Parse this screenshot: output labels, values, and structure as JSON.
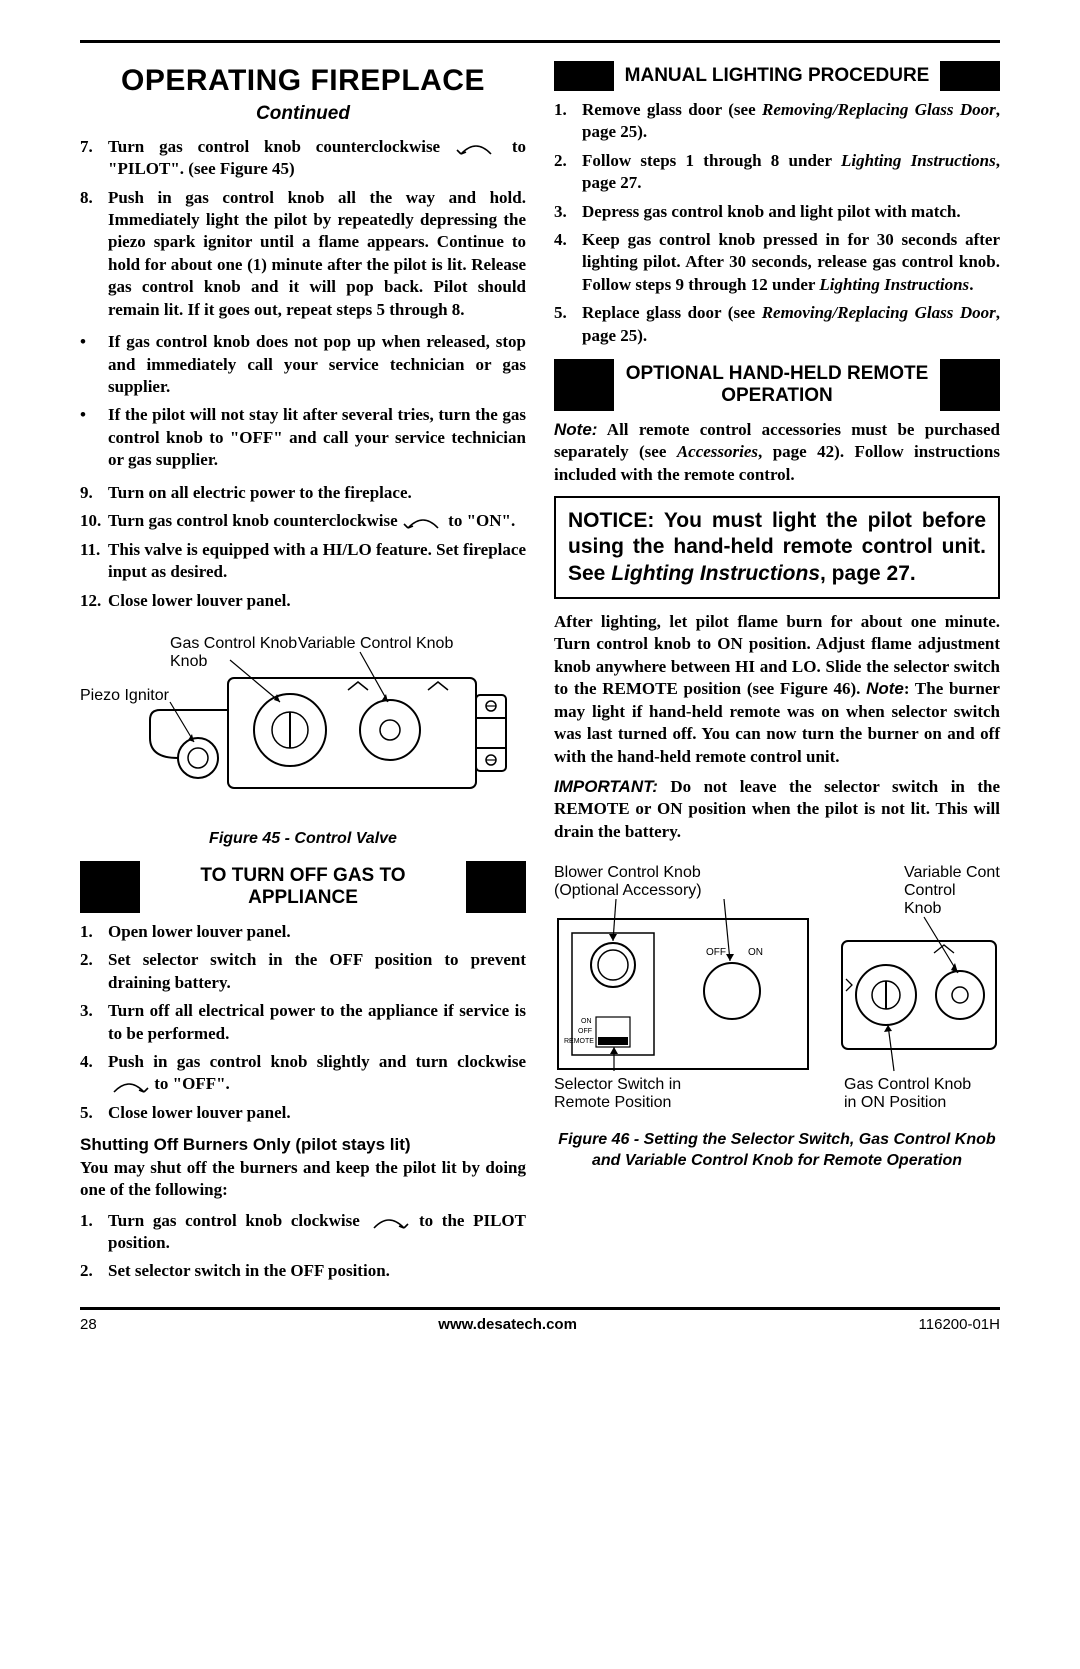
{
  "header": {
    "title": "OPERATING FIREPLACE",
    "continued": "Continued"
  },
  "left": {
    "steps_a": [
      {
        "n": "7.",
        "pre": "Turn gas control knob counterclockwise",
        "post": " to \"PILOT\". (see Figure 45)"
      },
      {
        "n": "8.",
        "pre": "",
        "post": "Push in gas control knob all the way and hold. Immediately light the pilot by repeatedly depressing the piezo spark ignitor until a flame appears. Continue to hold for about one (1) minute after the pilot is lit. Release gas control knob and it will pop back. Pilot should remain lit. If it goes out, repeat steps 5 through 8."
      }
    ],
    "bullets": [
      "If gas control knob does not pop up when released, stop and immediately call your service technician or gas supplier.",
      "If the pilot will not stay lit after several tries, turn the gas control knob to \"OFF\" and call your service technician or gas supplier."
    ],
    "steps_b": [
      {
        "n": "9.",
        "pre": "",
        "post": "Turn on all electric power to the fireplace."
      },
      {
        "n": "10.",
        "pre": "Turn gas control knob counterclockwise",
        "post": " to \"ON\"."
      },
      {
        "n": "11.",
        "pre": "",
        "post": "This valve is equipped with a HI/LO feature. Set fireplace input as desired."
      },
      {
        "n": "12.",
        "pre": "",
        "post": "Close lower louver panel."
      }
    ],
    "fig45": {
      "label_gas": "Gas Control Knob",
      "label_var": "Variable Control Knob",
      "label_piezo": "Piezo Ignitor",
      "caption": "Figure 45 - Control Valve"
    },
    "turnoff": {
      "header": "TO TURN OFF GAS TO APPLIANCE",
      "steps": [
        {
          "n": "1.",
          "pre": "",
          "post": "Open lower louver panel."
        },
        {
          "n": "2.",
          "pre": "",
          "post": "Set selector switch in the OFF position to prevent draining battery."
        },
        {
          "n": "3.",
          "pre": "",
          "post": "Turn off all electrical power to the appliance if service is to be performed."
        },
        {
          "n": "4.",
          "pre": "Push in gas control knob slightly and turn clockwise ",
          "post": " to \"OFF\"."
        },
        {
          "n": "5.",
          "pre": "",
          "post": "Close lower louver panel."
        }
      ]
    },
    "shutoff": {
      "subhead": "Shutting Off Burners Only (pilot stays lit)",
      "intro": "You may shut off the burners and keep the pilot lit by doing one of the following:",
      "steps": [
        {
          "n": "1.",
          "pre": "Turn gas control knob clockwise ",
          "post": " to the PILOT position."
        },
        {
          "n": "2.",
          "pre": "",
          "post": "Set selector switch in the OFF position."
        }
      ]
    }
  },
  "right": {
    "manual": {
      "header": "MANUAL LIGHTING PROCEDURE",
      "steps": [
        {
          "n": "1.",
          "html": "Remove glass door (see <span class='italic'>Removing/Replacing Glass Door</span>, page 25)."
        },
        {
          "n": "2.",
          "html": "Follow steps 1 through 8 under <span class='italic'>Lighting Instructions</span>, page 27."
        },
        {
          "n": "3.",
          "html": "Depress gas control knob and light pilot with match."
        },
        {
          "n": "4.",
          "html": "Keep gas control knob pressed in for 30 seconds after lighting pilot. After 30 seconds, release gas control knob. Follow steps 9 through 12 under <span class='italic'>Lighting Instructions</span>."
        },
        {
          "n": "5.",
          "html": "Replace glass door (see <span class='italic'>Removing/Replacing Glass Door</span>, page 25)."
        }
      ]
    },
    "optional": {
      "header": "OPTIONAL HAND-HELD REMOTE OPERATION",
      "note_label": "Note:",
      "note_body": " All remote control accessories must be purchased separately (see <span class='italic'>Accessories</span>, page 42). Follow instructions included with the remote control."
    },
    "notice": {
      "pre": "NOTICE: You must light the pilot before using the hand-held remote control unit. See ",
      "it": "Lighting Instructions",
      "post": ", page 27."
    },
    "after": {
      "p1": "After lighting, let pilot flame burn for about one minute. Turn control knob to ON position. Adjust flame adjustment knob anywhere between HI and LO. Slide the selector switch to the REMOTE position (see Figure 46). <span class='note-pre'>Note</span>: The burner may light if hand-held remote was on when selector switch was last turned off. You can now turn the burner on and off with the hand-held remote control unit.",
      "p2_label": "IMPORTANT:",
      "p2": " Do not leave the selector switch in the REMOTE or ON position when the pilot is not lit. This will drain the battery."
    },
    "fig46": {
      "lbl_blower_1": "Blower Control Knob",
      "lbl_blower_2": "(Optional Accessory)",
      "lbl_var": "Variable Control Knob",
      "lbl_off": "OFF",
      "lbl_on": "ON",
      "lbl_remote": "REMOTE",
      "lbl_off2": "OFF",
      "lbl_on2": "ON",
      "lbl_sel_1": "Selector Switch in",
      "lbl_sel_2": "Remote Position",
      "lbl_gas_1": "Gas Control Knob",
      "lbl_gas_2": "in ON Position",
      "caption": "Figure 46 - Setting the Selector Switch, Gas Control Knob and Variable Control Knob for Remote Operation"
    }
  },
  "footer": {
    "page": "28",
    "url": "www.desatech.com",
    "doc": "116200-01H"
  },
  "colors": {
    "black": "#000000",
    "white": "#ffffff"
  }
}
